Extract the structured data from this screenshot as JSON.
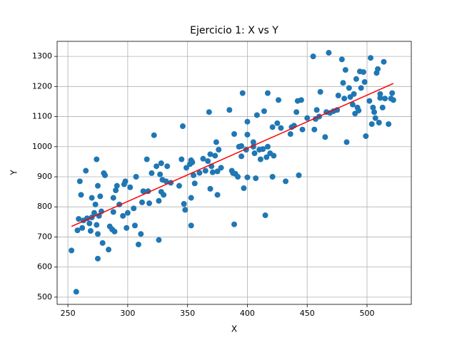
{
  "chart_data": {
    "type": "scatter",
    "title": "Ejercicio 1: X vs Y",
    "xlabel": "X",
    "ylabel": "Y",
    "xlim": [
      241,
      537
    ],
    "ylim": [
      476,
      1350
    ],
    "xticks": [
      250,
      300,
      350,
      400,
      450,
      500
    ],
    "yticks": [
      500,
      600,
      700,
      800,
      900,
      1000,
      1100,
      1200,
      1300
    ],
    "grid": true,
    "series": [
      {
        "color": "#1f77b4",
        "x": [
          253,
          257,
          258,
          259,
          260,
          261,
          262,
          263,
          265,
          266,
          268,
          269,
          270,
          270,
          272,
          273,
          274,
          274,
          275,
          275,
          275,
          276,
          277,
          278,
          279,
          280,
          281,
          284,
          285,
          287,
          288,
          288,
          289,
          290,
          291,
          293,
          296,
          297,
          298,
          299,
          300,
          302,
          305,
          306,
          307,
          309,
          311,
          312,
          313,
          316,
          317,
          318,
          320,
          322,
          324,
          326,
          326,
          327,
          328,
          328,
          329,
          330,
          332,
          333,
          336,
          343,
          345,
          346,
          347,
          348,
          349,
          352,
          353,
          353,
          353,
          354,
          355,
          356,
          360,
          363,
          365,
          367,
          368,
          369,
          369,
          370,
          371,
          373,
          374,
          375,
          375,
          376,
          378,
          385,
          387,
          388,
          389,
          389,
          390,
          392,
          393,
          395,
          395,
          396,
          397,
          399,
          400,
          400,
          400,
          405,
          405,
          406,
          407,
          408,
          410,
          411,
          413,
          414,
          415,
          416,
          417,
          417,
          419,
          421,
          421,
          422,
          425,
          426,
          428,
          432,
          436,
          437,
          439,
          441,
          442,
          443,
          445,
          446,
          450,
          455,
          456,
          457,
          458,
          460,
          461,
          465,
          466,
          468,
          469,
          472,
          475,
          476,
          479,
          480,
          481,
          482,
          483,
          485,
          486,
          488,
          489,
          490,
          491,
          492,
          493,
          494,
          495,
          497,
          498,
          499,
          502,
          503,
          504,
          505,
          506,
          507,
          508,
          509,
          510,
          511,
          511,
          513,
          514,
          515,
          518,
          520,
          521,
          522
        ],
        "y": [
          655,
          518,
          722,
          760,
          885,
          840,
          730,
          755,
          920,
          762,
          745,
          720,
          765,
          830,
          780,
          808,
          740,
          958,
          710,
          628,
          870,
          770,
          835,
          785,
          680,
          912,
          905,
          658,
          735,
          725,
          783,
          830,
          718,
          855,
          870,
          808,
          770,
          875,
          885,
          730,
          780,
          865,
          795,
          738,
          900,
          675,
          710,
          815,
          852,
          958,
          852,
          812,
          912,
          1038,
          935,
          690,
          820,
          908,
          945,
          850,
          890,
          840,
          885,
          935,
          880,
          870,
          958,
          1068,
          810,
          790,
          930,
          942,
          955,
          830,
          738,
          948,
          905,
          878,
          913,
          960,
          920,
          952,
          1115,
          975,
          860,
          935,
          915,
          970,
          1015,
          918,
          840,
          990,
          930,
          1122,
          920,
          912,
          1042,
          742,
          910,
          900,
          1000,
          1002,
          968,
          1178,
          862,
          990,
          1040,
          1083,
          898,
          1015,
          1000,
          978,
          895,
          1105,
          990,
          958,
          992,
          1118,
          772,
          965,
          1000,
          1178,
          978,
          1065,
          900,
          970,
          1078,
          1155,
          1062,
          885,
          1042,
          1065,
          1070,
          1115,
          1152,
          905,
          1155,
          1057,
          1095,
          1300,
          1057,
          1092,
          1122,
          1100,
          1182,
          1032,
          1115,
          1312,
          1112,
          1118,
          1122,
          1170,
          1290,
          1212,
          1160,
          1255,
          1015,
          1195,
          1165,
          1140,
          1175,
          1110,
          1225,
          1130,
          1120,
          1250,
          1195,
          1248,
          1215,
          1035,
          1152,
          1295,
          1075,
          1130,
          1115,
          1095,
          1245,
          1258,
          1080,
          1162,
          1175,
          1130,
          1282,
          1160,
          1075,
          1160,
          1178,
          1155
        ]
      }
    ],
    "fit": {
      "color": "#ff0000",
      "x": [
        253,
        522
      ],
      "y": [
        735,
        1210
      ]
    }
  }
}
